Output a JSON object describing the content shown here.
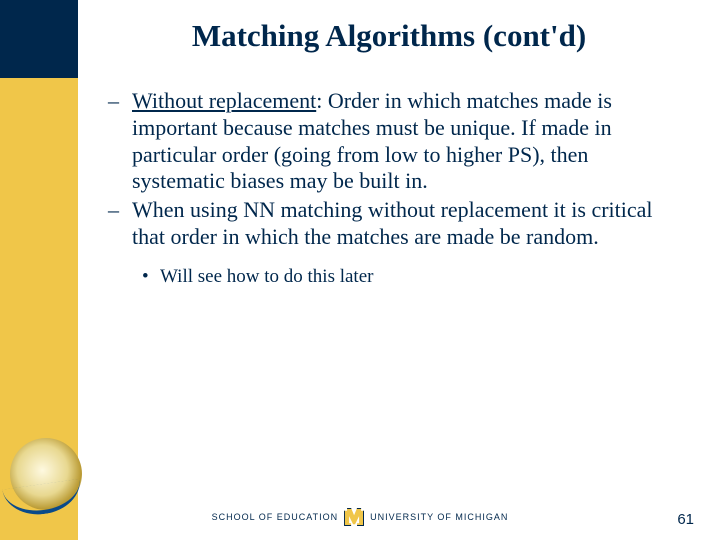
{
  "colors": {
    "navy": "#00274c",
    "maize": "#f0c649",
    "background": "#ffffff"
  },
  "title": "Matching Algorithms (cont'd)",
  "bullets": [
    {
      "leadUnderlined": "Without replacement",
      "rest": ": Order in which matches made is important because matches must be unique. If made in particular order (going from low to higher PS), then systematic biases may be built in."
    },
    {
      "text": "When using NN matching without replacement it is critical that order in which the matches are made be random."
    }
  ],
  "subBullet": "Will see how to do this later",
  "footer": {
    "left": "SCHOOL OF EDUCATION",
    "right": "UNIVERSITY OF MICHIGAN"
  },
  "pageNumber": "61"
}
